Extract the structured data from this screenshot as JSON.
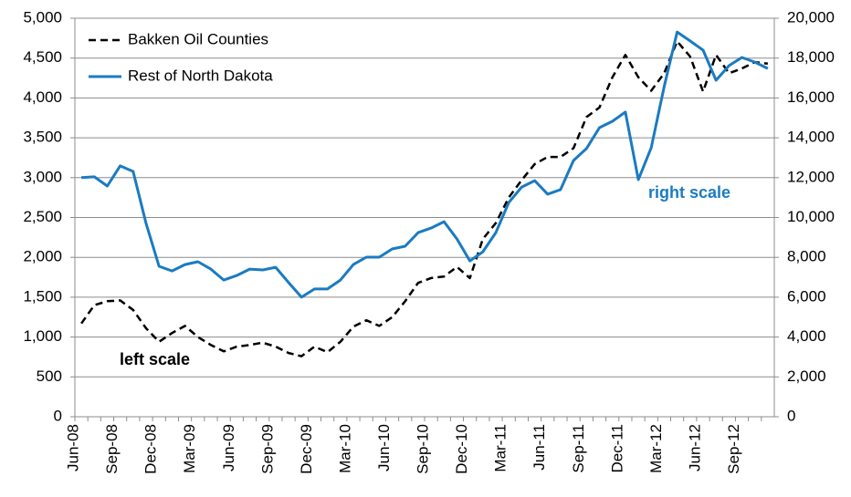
{
  "chart_data": {
    "type": "line",
    "categories": [
      "Jun-08",
      null,
      null,
      "Sep-08",
      null,
      null,
      "Dec-08",
      null,
      null,
      "Mar-09",
      null,
      null,
      "Jun-09",
      null,
      null,
      "Sep-09",
      null,
      null,
      "Dec-09",
      null,
      null,
      "Mar-10",
      null,
      null,
      "Jun-10",
      null,
      null,
      "Sep-10",
      null,
      null,
      "Dec-10",
      null,
      null,
      "Mar-11",
      null,
      null,
      "Jun-11",
      null,
      null,
      "Sep-11",
      null,
      null,
      "Dec-11",
      null,
      null,
      "Mar-12",
      null,
      null,
      "Jun-12",
      null,
      null,
      "Sep-12",
      null,
      null
    ],
    "series": [
      {
        "name": "Bakken Oil Counties",
        "color": "#000000",
        "dashed": true,
        "axis": "y",
        "values": [
          1170,
          1400,
          1450,
          1460,
          1340,
          1110,
          940,
          1050,
          1140,
          1000,
          900,
          820,
          880,
          900,
          930,
          880,
          800,
          760,
          880,
          810,
          940,
          1130,
          1210,
          1140,
          1250,
          1450,
          1680,
          1740,
          1760,
          1880,
          1740,
          2230,
          2430,
          2750,
          2970,
          3170,
          3260,
          3260,
          3370,
          3760,
          3880,
          4260,
          4540,
          4260,
          4090,
          4310,
          4710,
          4520,
          4080,
          4540,
          4310,
          4370,
          4450,
          4430
        ]
      },
      {
        "name": "Rest of North Dakota",
        "color": "#1b7bc1",
        "dashed": false,
        "axis": "y2",
        "values": [
          12000,
          12040,
          11580,
          12590,
          12310,
          9700,
          7550,
          7320,
          7640,
          7780,
          7410,
          6860,
          7090,
          7410,
          7370,
          7500,
          6730,
          6000,
          6410,
          6410,
          6860,
          7640,
          8010,
          8010,
          8420,
          8560,
          9240,
          9470,
          9790,
          8920,
          7820,
          8280,
          9240,
          10750,
          11530,
          11850,
          11170,
          11400,
          12860,
          13460,
          14510,
          14830,
          15290,
          11900,
          13500,
          16570,
          19310,
          18860,
          18400,
          16890,
          17620,
          18030,
          17800,
          17480
        ]
      }
    ],
    "ylim": [
      0,
      5000
    ],
    "yticks": [
      0,
      500,
      {
        "value": 1000,
        "label": "1,000"
      },
      {
        "value": 1500,
        "label": "1,500"
      },
      {
        "value": 2000,
        "label": "2,000"
      },
      {
        "value": 2500,
        "label": "2,500"
      },
      {
        "value": 3000,
        "label": "3,000"
      },
      {
        "value": 3500,
        "label": "3,500"
      },
      {
        "value": 4000,
        "label": "4,000"
      },
      {
        "value": 4500,
        "label": "4,500"
      },
      {
        "value": 5000,
        "label": "5,000"
      }
    ],
    "y2lim": [
      0,
      20000
    ],
    "y2ticks": [
      0,
      {
        "value": 2000,
        "label": "2,000"
      },
      {
        "value": 4000,
        "label": "4,000"
      },
      {
        "value": 6000,
        "label": "6,000"
      },
      {
        "value": 8000,
        "label": "8,000"
      },
      {
        "value": 10000,
        "label": "10,000"
      },
      {
        "value": 12000,
        "label": "12,000"
      },
      {
        "value": 14000,
        "label": "14,000"
      },
      {
        "value": 16000,
        "label": "16,000"
      },
      {
        "value": 18000,
        "label": "18,000"
      },
      {
        "value": 20000,
        "label": "20,000"
      }
    ],
    "grid": true,
    "legend": "upper left",
    "annotations": [
      {
        "text": "left scale",
        "color": "#000000"
      },
      {
        "text": "right scale",
        "color": "#1b7bc1"
      }
    ]
  }
}
